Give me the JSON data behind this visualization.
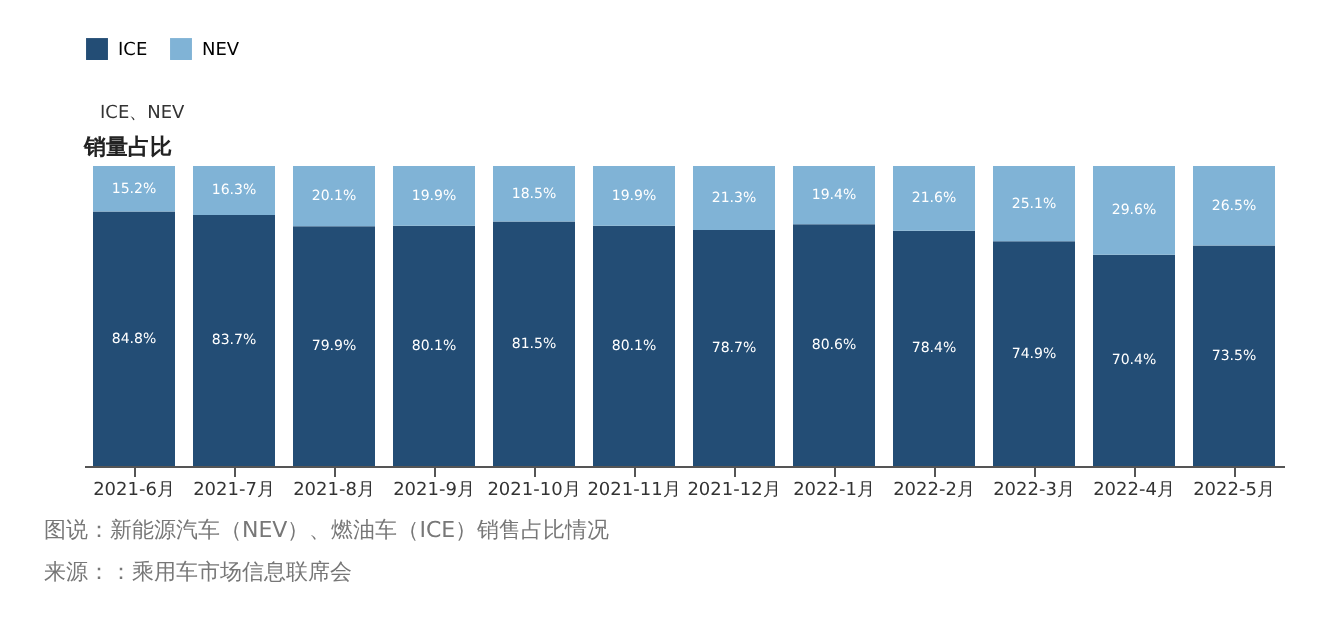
{
  "chart_data": {
    "type": "bar",
    "title": "销量占比",
    "stacked": true,
    "categories": [
      "2021-6月",
      "2021-7月",
      "2021-8月",
      "2021-9月",
      "2021-10月",
      "2021-11月",
      "2021-12月",
      "2022-1月",
      "2022-2月",
      "2022-3月",
      "2022-4月",
      "2022-5月"
    ],
    "series": [
      {
        "name": "ICE",
        "color": "#234d75",
        "values": [
          84.8,
          83.7,
          79.9,
          80.1,
          81.5,
          80.1,
          78.7,
          80.6,
          78.4,
          74.9,
          70.4,
          73.5
        ],
        "value_labels": [
          "84.8%",
          "83.7%",
          "79.9%",
          "80.1%",
          "81.5%",
          "80.1%",
          "78.7%",
          "80.6%",
          "78.4%",
          "74.9%",
          "70.4%",
          "73.5%"
        ]
      },
      {
        "name": "NEV",
        "color": "#80b3d6",
        "values": [
          15.2,
          16.3,
          20.1,
          19.9,
          18.5,
          19.9,
          21.3,
          19.4,
          21.6,
          25.1,
          29.6,
          26.5
        ],
        "value_labels": [
          "15.2%",
          "16.3%",
          "20.1%",
          "19.9%",
          "18.5%",
          "19.9%",
          "21.3%",
          "19.4%",
          "21.6%",
          "25.1%",
          "29.6%",
          "26.5%"
        ]
      }
    ],
    "ylim": [
      0,
      100
    ],
    "tick_labels": "x",
    "legend": "top",
    "grid": false,
    "annotations": [
      "ICE、NEV",
      "图说：新能源汽车（NEV）、燃油车（ICE）销售占比情况",
      "来源：：乘用车市场信息联席会"
    ]
  }
}
